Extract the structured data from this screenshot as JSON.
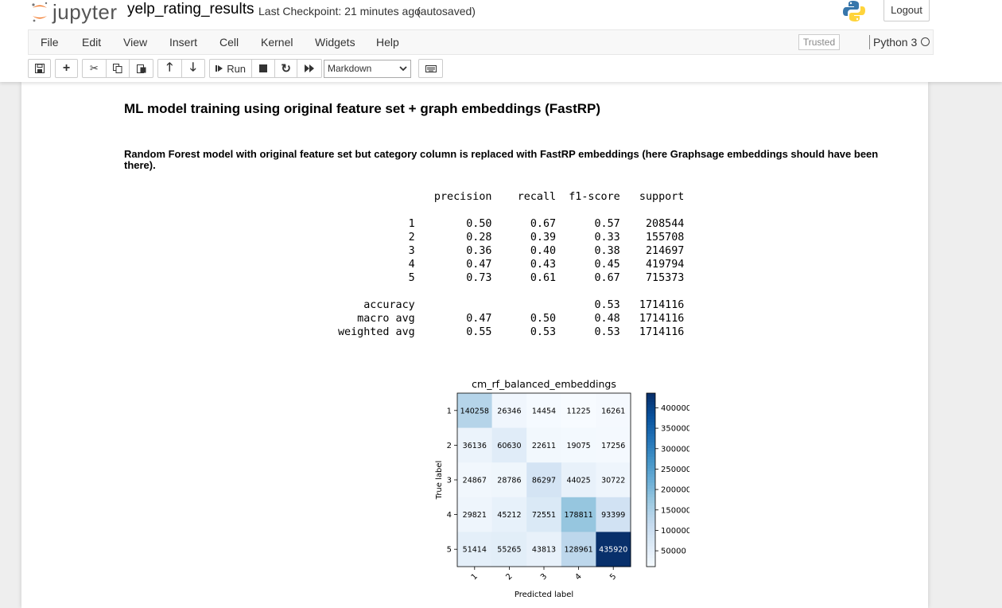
{
  "header": {
    "logo_text": "jupyter",
    "notebook_name": "yelp_rating_results",
    "checkpoint": "Last Checkpoint: 21 minutes ago",
    "autosave": "(autosaved)",
    "logout_label": "Logout"
  },
  "menu": {
    "items": [
      "File",
      "Edit",
      "View",
      "Insert",
      "Cell",
      "Kernel",
      "Widgets",
      "Help"
    ],
    "trusted_label": "Trusted",
    "kernel_name": "Python 3"
  },
  "toolbar": {
    "run_label": "Run",
    "cell_type": "Markdown",
    "icons": [
      "save-icon",
      "plus-icon",
      "cut-icon",
      "copy-icon",
      "paste-icon",
      "arrow-up-icon",
      "arrow-down-icon",
      "run-icon",
      "stop-icon",
      "restart-icon",
      "fast-forward-icon",
      "keyboard-icon"
    ]
  },
  "cells": {
    "heading": "ML model training using original feature set + graph embeddings (FastRP)",
    "description": "Random Forest model with original feature set but category column is replaced with FastRP embeddings (here Graphsage embeddings should have been there).",
    "report": {
      "columns": [
        "precision",
        "recall",
        "f1-score",
        "support"
      ],
      "rows": [
        {
          "label": "1",
          "precision": "0.50",
          "recall": "0.67",
          "f1": "0.57",
          "support": "208544"
        },
        {
          "label": "2",
          "precision": "0.28",
          "recall": "0.39",
          "f1": "0.33",
          "support": "155708"
        },
        {
          "label": "3",
          "precision": "0.36",
          "recall": "0.40",
          "f1": "0.38",
          "support": "214697"
        },
        {
          "label": "4",
          "precision": "0.47",
          "recall": "0.43",
          "f1": "0.45",
          "support": "419794"
        },
        {
          "label": "5",
          "precision": "0.73",
          "recall": "0.61",
          "f1": "0.67",
          "support": "715373"
        }
      ],
      "accuracy": {
        "label": "accuracy",
        "f1": "0.53",
        "support": "1714116"
      },
      "macro": {
        "label": "macro avg",
        "precision": "0.47",
        "recall": "0.50",
        "f1": "0.48",
        "support": "1714116"
      },
      "weighted": {
        "label": "weighted avg",
        "precision": "0.55",
        "recall": "0.53",
        "f1": "0.53",
        "support": "1714116"
      }
    }
  },
  "chart_data": {
    "type": "heatmap",
    "title": "cm_rf_balanced_embeddings",
    "xlabel": "Predicted label",
    "ylabel": "True label",
    "x_categories": [
      "1",
      "2",
      "3",
      "4",
      "5"
    ],
    "y_categories": [
      "1",
      "2",
      "3",
      "4",
      "5"
    ],
    "matrix": [
      [
        140258,
        26346,
        14454,
        11225,
        16261
      ],
      [
        36136,
        60630,
        22611,
        19075,
        17256
      ],
      [
        24867,
        28786,
        86297,
        44025,
        30722
      ],
      [
        29821,
        45212,
        72551,
        178811,
        93399
      ],
      [
        51414,
        55265,
        43813,
        128961,
        435920
      ]
    ],
    "colorbar_ticks": [
      50000,
      100000,
      150000,
      200000,
      250000,
      300000,
      350000,
      400000
    ],
    "colorbar_range": [
      11225,
      435920
    ],
    "colormap": "Blues"
  }
}
